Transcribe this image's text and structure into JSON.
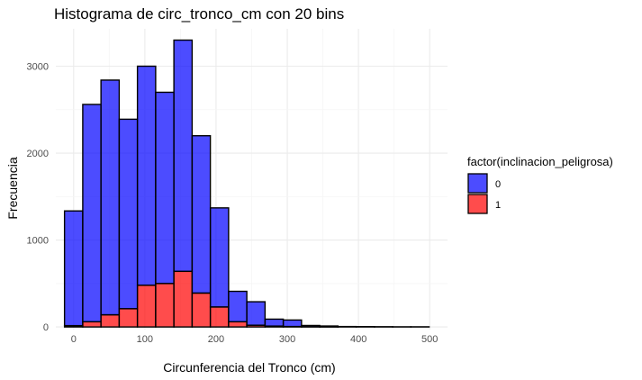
{
  "chart_data": {
    "type": "bar",
    "title": "Histograma de circ_tronco_cm con 20 bins",
    "xlabel": "Circunferencia del Tronco (cm)",
    "ylabel": "Frecuencia",
    "x_ticks": [
      0,
      100,
      200,
      300,
      400,
      500
    ],
    "y_ticks": [
      0,
      1000,
      2000,
      3000
    ],
    "xlim": [
      -25,
      525
    ],
    "ylim": [
      -30,
      3430
    ],
    "grid": true,
    "bin_width": 25.6,
    "bin_centers": [
      0,
      25.6,
      51.2,
      76.8,
      102.4,
      128,
      153.6,
      179.2,
      204.8,
      230.4,
      256,
      281.6,
      307.2,
      332.8,
      358.4,
      384,
      409.6,
      435.2,
      460.8,
      486.4
    ],
    "stacked": true,
    "series": [
      {
        "name": "0",
        "color": "#0000ff",
        "values": [
          1320,
          2500,
          2700,
          2180,
          2520,
          2200,
          2660,
          1810,
          1140,
          350,
          270,
          80,
          75,
          15,
          10,
          5,
          4,
          3,
          2,
          2
        ]
      },
      {
        "name": "1",
        "color": "#ff0000",
        "values": [
          15,
          60,
          140,
          210,
          480,
          500,
          640,
          390,
          230,
          60,
          20,
          10,
          5,
          2,
          1,
          0,
          0,
          0,
          0,
          0
        ]
      }
    ],
    "totals": [
      1335,
      2560,
      2840,
      2390,
      3000,
      2700,
      3300,
      2200,
      1370,
      410,
      290,
      90,
      80,
      17,
      11,
      5,
      4,
      3,
      2,
      2
    ],
    "legend": {
      "title": "factor(inclinacion_peligrosa)",
      "position": "right",
      "items": [
        "0",
        "1"
      ]
    }
  }
}
